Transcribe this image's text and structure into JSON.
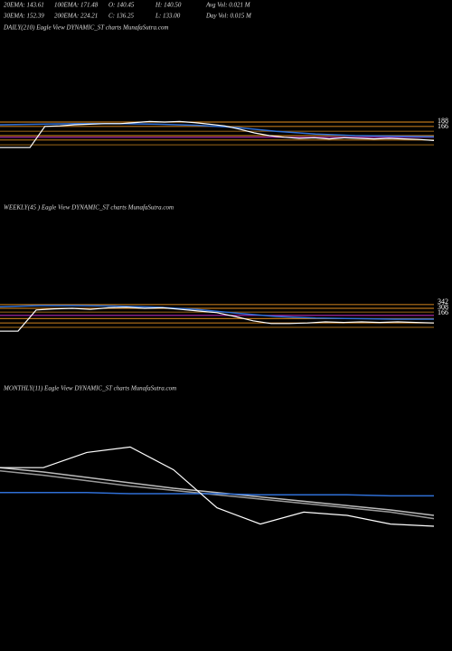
{
  "header": {
    "rows": [
      [
        "20EMA: 143.61",
        "100EMA: 171.48",
        "O: 140.45",
        "H: 140.50",
        "Avg Vol: 0.021 M"
      ],
      [
        "30EMA: 152.39",
        "200EMA: 224.21",
        "C: 136.25",
        "L: 133.00",
        "Day Vol: 0.015 M"
      ]
    ]
  },
  "panels": [
    {
      "label": "DAILY(210) Eagle  View  DYNAMIC_ST charts MunafaSutra.com",
      "right_labels": [
        "188",
        "166"
      ],
      "ylim": [
        100,
        200
      ],
      "hlines": [
        {
          "value": 175,
          "color": "#b8741a"
        },
        {
          "value": 167,
          "color": "#b8741a"
        },
        {
          "value": 158,
          "color": "#8a5a14"
        },
        {
          "value": 150,
          "color": "#b8741a"
        },
        {
          "value": 147,
          "color": "#b02ab0"
        },
        {
          "value": 142,
          "color": "#b8741a"
        },
        {
          "value": 133,
          "color": "#8a5a14"
        }
      ],
      "series": [
        {
          "color": "#2f6fd6",
          "values": [
            170,
            171,
            172,
            172,
            171,
            169,
            165,
            158,
            153,
            150,
            149,
            148
          ]
        },
        {
          "color": "#ffffff",
          "values": [
            128,
            128,
            128,
            167,
            168,
            170,
            171,
            172,
            172,
            174,
            176,
            175,
            176,
            174,
            171,
            168,
            162,
            155,
            150,
            147,
            145,
            146,
            144,
            146,
            145,
            144,
            145,
            144,
            143,
            141
          ]
        }
      ]
    },
    {
      "label": "WEEKLY(45                                   ) Eagle  View  DYNAMIC_ST charts MunafaSutra.com",
      "right_labels": [
        "342",
        "308",
        "166"
      ],
      "ylim": [
        100,
        200
      ],
      "hlines": [
        {
          "value": 172,
          "color": "#b8741a"
        },
        {
          "value": 165,
          "color": "#b8741a"
        },
        {
          "value": 158,
          "color": "#8a5a14"
        },
        {
          "value": 152,
          "color": "#b02ab0"
        },
        {
          "value": 146,
          "color": "#b8741a"
        },
        {
          "value": 138,
          "color": "#b8741a"
        },
        {
          "value": 130,
          "color": "#8a5a14"
        }
      ],
      "series": [
        {
          "color": "#2f6fd6",
          "values": [
            168,
            170,
            170,
            169,
            167,
            163,
            156,
            150,
            147,
            146,
            145,
            145
          ]
        },
        {
          "color": "#ffffff",
          "values": [
            123,
            123,
            162,
            164,
            165,
            163,
            166,
            167,
            165,
            166,
            163,
            160,
            157,
            150,
            142,
            137,
            137,
            138,
            140,
            139,
            140,
            139,
            140,
            139,
            138
          ]
        }
      ]
    },
    {
      "label": "MONTHLY(11) Eagle  View  DYNAMIC_ST charts MunafaSutra.com",
      "right_labels": [],
      "ylim": [
        100,
        200
      ],
      "hlines": [],
      "series": [
        {
          "color": "#bbbbbb",
          "values": [
            169,
            165,
            160,
            155,
            150,
            146,
            142,
            138,
            134,
            130,
            125
          ]
        },
        {
          "color": "#999999",
          "values": [
            166,
            162,
            157,
            152,
            148,
            144,
            140,
            136,
            132,
            128,
            122
          ]
        },
        {
          "color": "#2f6fd6",
          "values": [
            146,
            146,
            146,
            145,
            145,
            145,
            144,
            144,
            144,
            143,
            143
          ]
        },
        {
          "color": "#ffffff",
          "values": [
            169,
            169,
            183,
            188,
            167,
            132,
            117,
            128,
            125,
            117,
            115
          ]
        }
      ]
    }
  ]
}
